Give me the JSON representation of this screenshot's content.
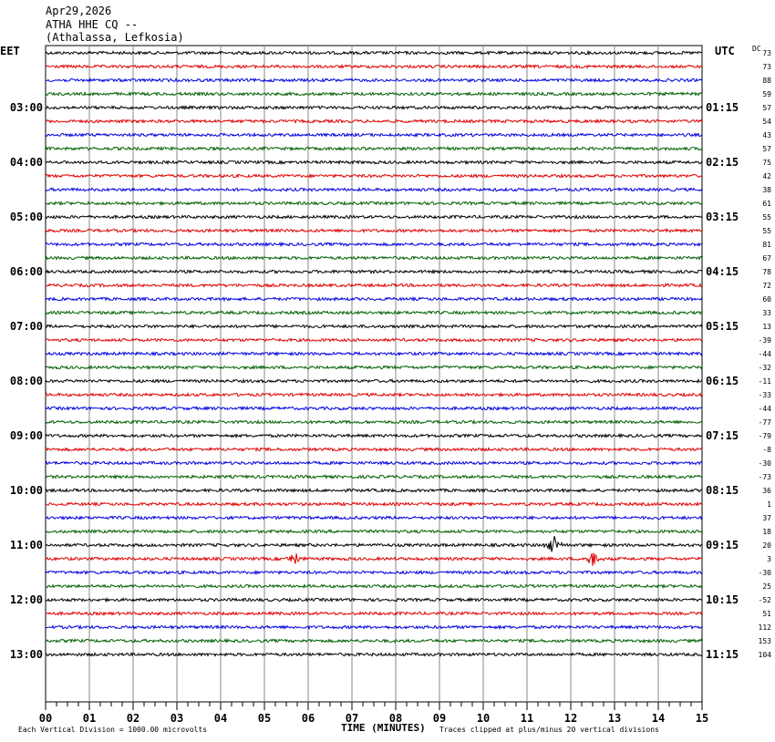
{
  "header": {
    "date": "Apr29,2026",
    "station": "ATHA HHE CQ --",
    "location": "(Athalassa, Lefkosia)"
  },
  "left_timezone": "EET",
  "right_timezone": "UTC",
  "dc_header": "DC",
  "footer": {
    "left_note": "Each Vertical Division = 1000.00 microvolts",
    "xlabel": "TIME (MINUTES)",
    "right_note": "Traces clipped at plus/minus 20 vertical divisions"
  },
  "colors": {
    "trace": [
      "#000000",
      "#e00000",
      "#0000e0",
      "#006000"
    ],
    "grid": "#888888"
  },
  "chart_data": {
    "type": "line",
    "title": "ATHA HHE CQ --",
    "xlabel": "TIME (MINUTES)",
    "xlim": [
      0,
      15
    ],
    "x_ticks": [
      "00",
      "01",
      "02",
      "03",
      "04",
      "05",
      "06",
      "07",
      "08",
      "09",
      "10",
      "11",
      "12",
      "13",
      "14",
      "15"
    ],
    "left_hour_labels": [
      "03:00",
      "04:00",
      "05:00",
      "06:00",
      "07:00",
      "08:00",
      "09:00",
      "10:00",
      "11:00",
      "12:00",
      "13:00"
    ],
    "right_hour_labels": [
      "01:15",
      "02:15",
      "03:15",
      "04:15",
      "05:15",
      "06:15",
      "07:15",
      "08:15",
      "09:15",
      "10:15",
      "11:15"
    ],
    "dc_offsets": [
      73,
      73,
      88,
      59,
      57,
      54,
      43,
      57,
      75,
      42,
      38,
      61,
      55,
      55,
      81,
      67,
      78,
      72,
      60,
      33,
      13,
      -39,
      -44,
      -32,
      -11,
      -33,
      -44,
      -77,
      -79,
      -8,
      -30,
      -73,
      36,
      1,
      37,
      18,
      20,
      3,
      -30,
      25,
      -52,
      51,
      112,
      153,
      104
    ],
    "events": [
      {
        "trace": 36,
        "minute": 11.6,
        "amplitude": 1.0
      },
      {
        "trace": 37,
        "minute": 5.7,
        "amplitude": 0.8
      },
      {
        "trace": 37,
        "minute": 12.5,
        "amplitude": 0.8
      }
    ]
  }
}
